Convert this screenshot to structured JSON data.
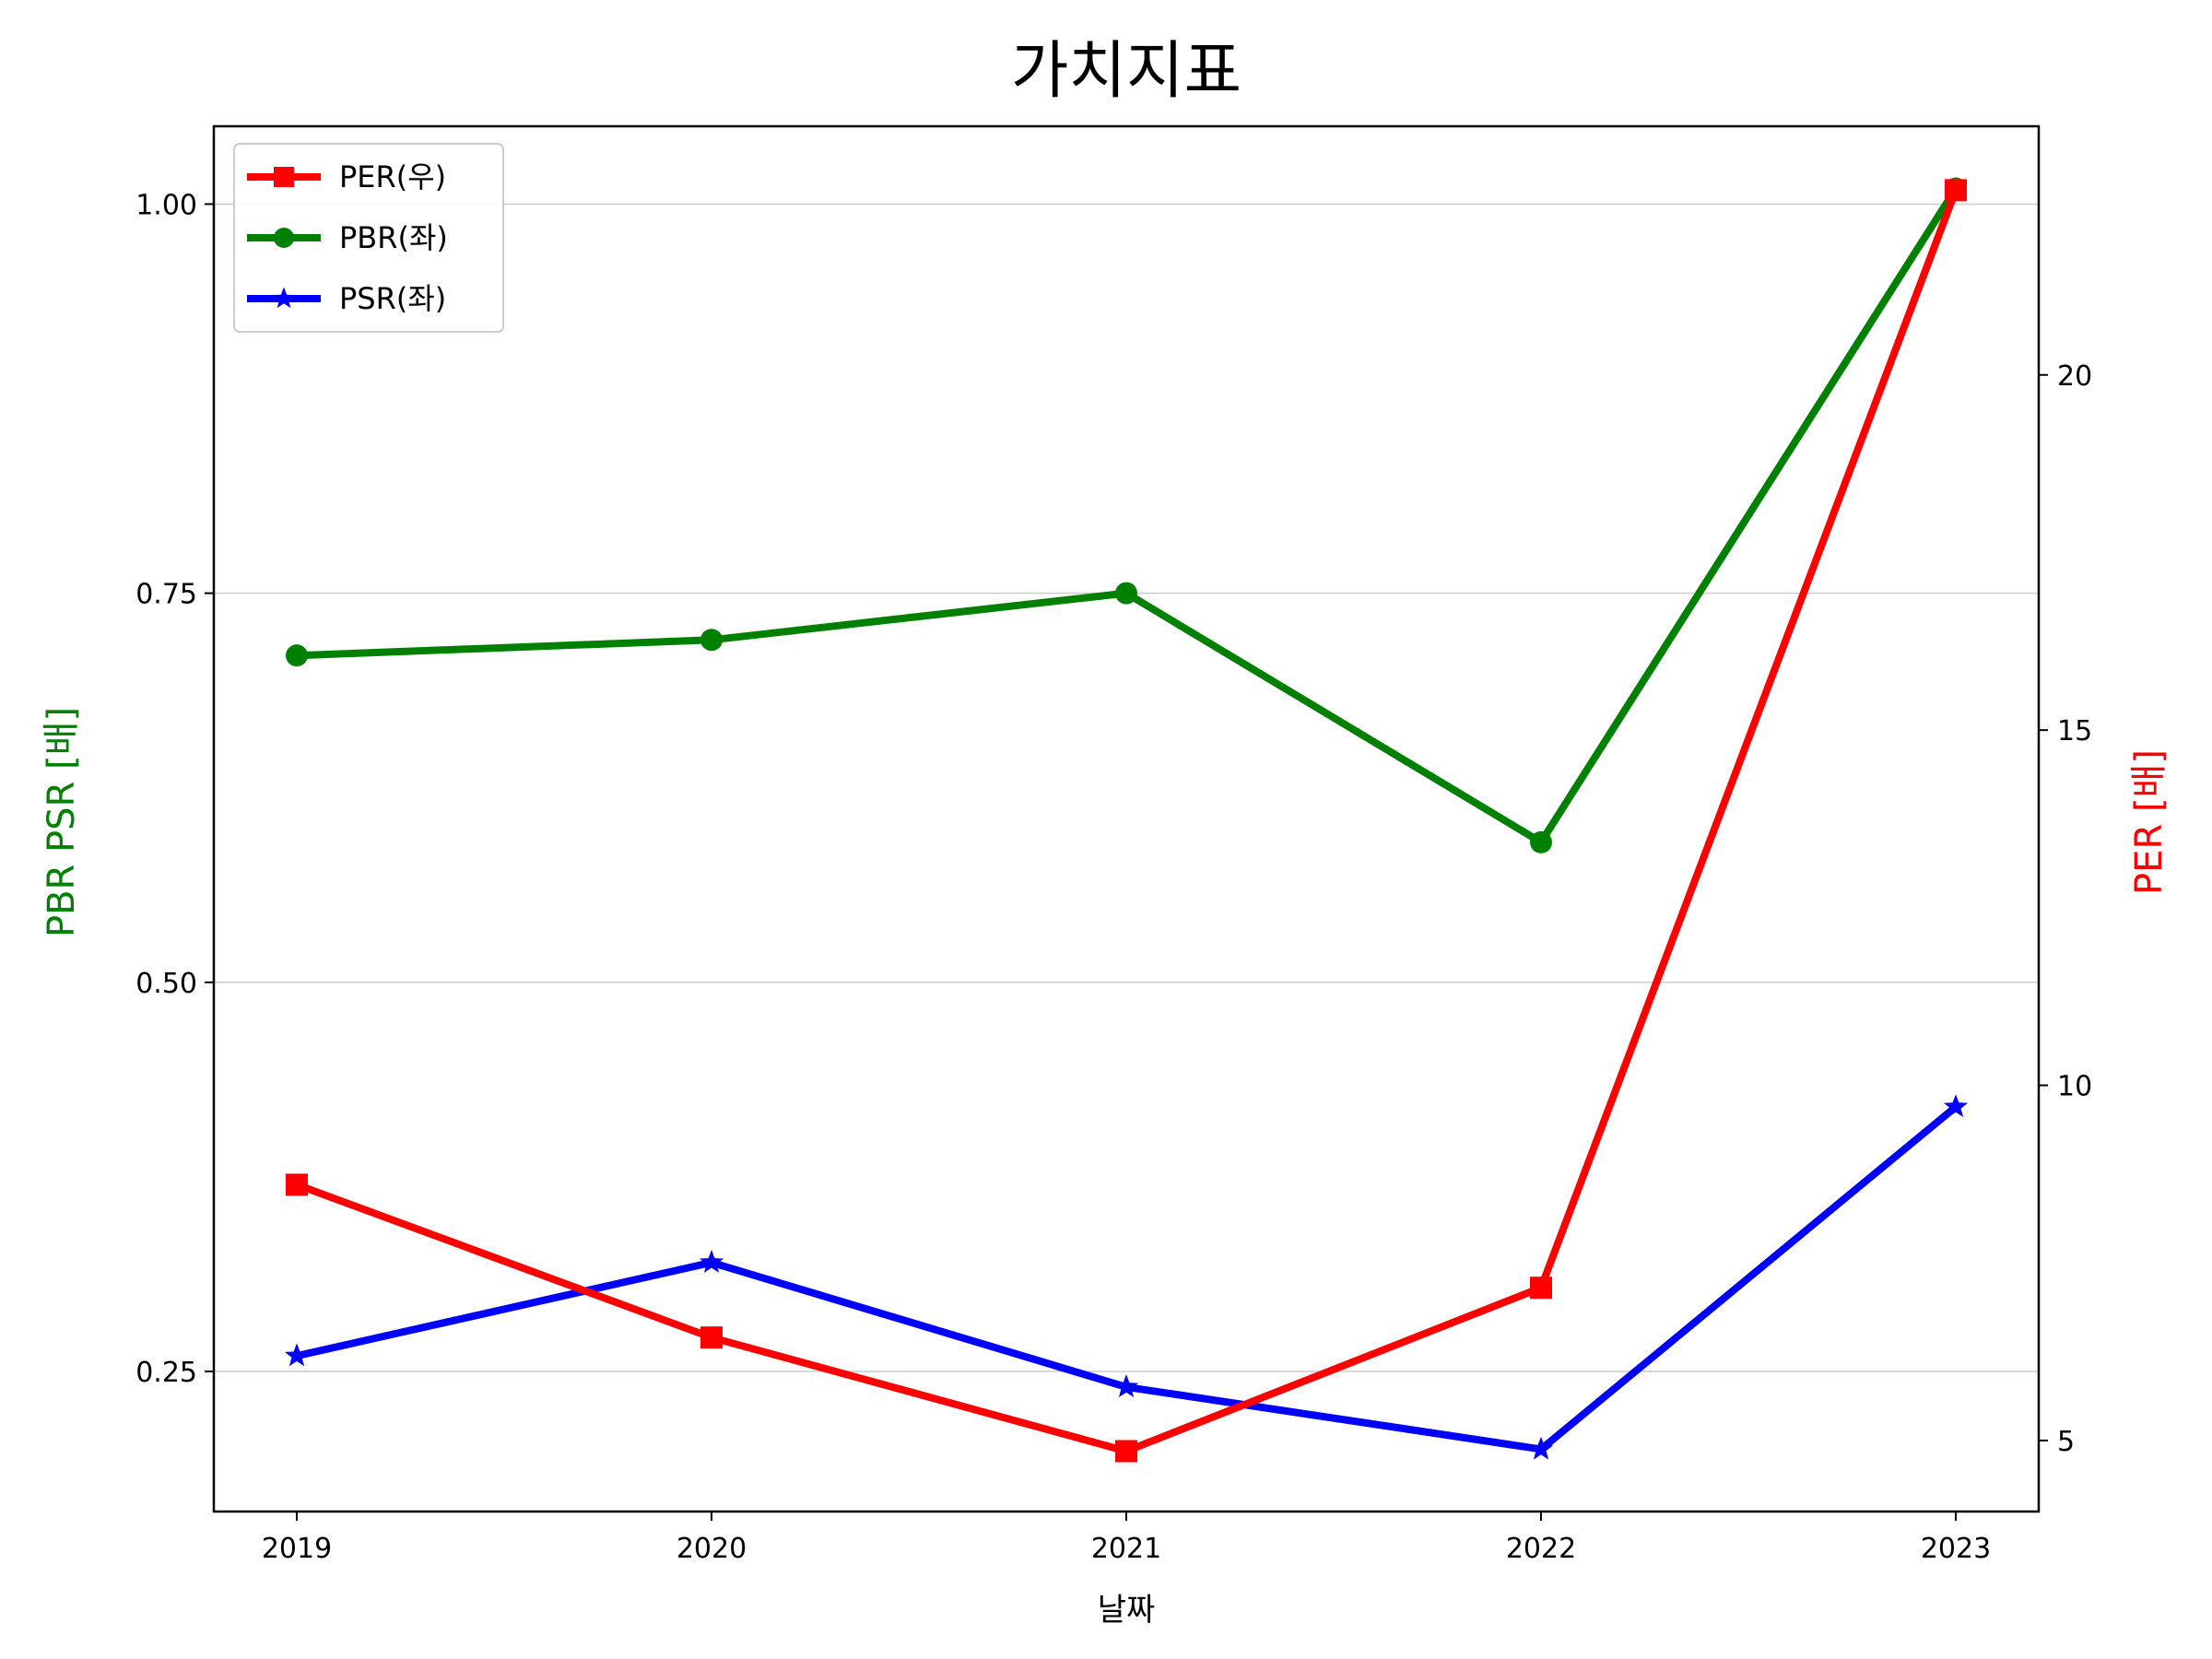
{
  "chart_data": {
    "type": "line",
    "title": "가치지표",
    "xlabel": "날짜",
    "ylabel_left": "PBR PSR [배]",
    "ylabel_right": "PER [배]",
    "categories": [
      "2019",
      "2020",
      "2021",
      "2022",
      "2023"
    ],
    "ylim_left": [
      0.16,
      1.05
    ],
    "ylim_right": [
      4.0,
      23.5
    ],
    "yticks_left": [
      "0.25",
      "0.50",
      "0.75",
      "1.00"
    ],
    "yticks_right": [
      "5",
      "10",
      "15",
      "20"
    ],
    "grid": "horizontal (left axis)",
    "legend_position": "top-left",
    "series": [
      {
        "name": "PER(우)",
        "axis": "right",
        "color": "#ff0000",
        "marker": "square",
        "values": [
          8.6,
          6.45,
          4.85,
          7.15,
          22.6
        ]
      },
      {
        "name": "PBR(좌)",
        "axis": "left",
        "color": "#008000",
        "marker": "circle",
        "values": [
          0.71,
          0.72,
          0.75,
          0.59,
          1.01
        ]
      },
      {
        "name": "PSR(좌)",
        "axis": "left",
        "color": "#0000ff",
        "marker": "star",
        "values": [
          0.26,
          0.32,
          0.24,
          0.2,
          0.42
        ]
      }
    ]
  }
}
